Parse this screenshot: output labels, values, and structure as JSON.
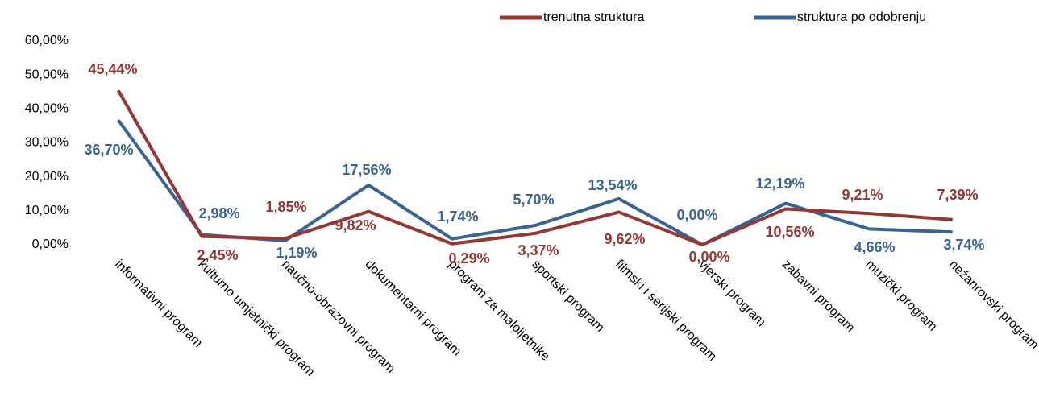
{
  "chart_data": {
    "type": "line",
    "categories": [
      "informativni program",
      "kulturno umjetnički program",
      "naučno-obrazovni program",
      "dokumentarni program",
      "program za maloljetnike",
      "sportski program",
      "filmski i serijski program",
      "vjerski program",
      "zabavni program",
      "muzički program",
      "nežanrovski program"
    ],
    "series": [
      {
        "name": "trenutna struktura",
        "color": "#953735",
        "values": [
          45.44,
          2.45,
          1.85,
          9.82,
          0.29,
          3.37,
          9.62,
          0.0,
          10.56,
          9.21,
          7.39
        ],
        "value_labels": [
          "45,44%",
          "2,45%",
          "1,85%",
          "9,82%",
          "0,29%",
          "3,37%",
          "9,62%",
          "0,00%",
          "10,56%",
          "9,21%",
          "7,39%"
        ]
      },
      {
        "name": "struktura po odobrenju",
        "color": "#3a6394",
        "values": [
          36.7,
          2.98,
          1.19,
          17.56,
          1.74,
          5.7,
          13.54,
          0.0,
          12.19,
          4.66,
          3.74
        ],
        "value_labels": [
          "36,70%",
          "2,98%",
          "1,19%",
          "17,56%",
          "1,74%",
          "5,70%",
          "13,54%",
          "0,00%",
          "12,19%",
          "4,66%",
          "3,74%"
        ]
      }
    ],
    "ylim": [
      0,
      60
    ],
    "yticks": [
      {
        "value": 0,
        "label": "0,00%"
      },
      {
        "value": 10,
        "label": "10,00%"
      },
      {
        "value": 20,
        "label": "20,00%"
      },
      {
        "value": 30,
        "label": "30,00%"
      },
      {
        "value": 40,
        "label": "40,00%"
      },
      {
        "value": 50,
        "label": "50,00%"
      },
      {
        "value": 60,
        "label": "60,00%"
      }
    ],
    "grid": false,
    "legend": "top"
  }
}
